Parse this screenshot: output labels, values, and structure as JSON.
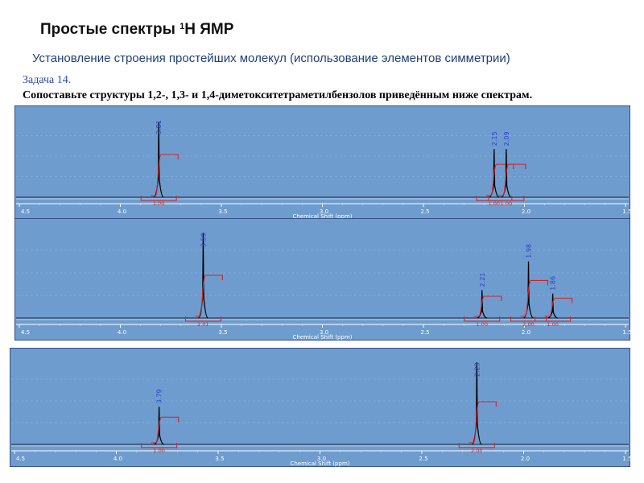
{
  "slide": {
    "title": "Простые спектры ",
    "title_sup": "1",
    "title_tail": "H ЯМР",
    "subtitle": "Установление строения простейших молекул (использование элементов симметрии)",
    "task_number": "Задача 14.",
    "task_text": "Сопоставьте структуры 1,2-, 1,3- и 1,4-диметокситетраметилбензолов приведённым ниже спектрам."
  },
  "colors": {
    "plot_background": "#6f9ccf",
    "plot_border": "#1e3a6e",
    "spectrum_line": "#000000",
    "integral_line": "#d82020",
    "peak_label": "#2d3fc4",
    "axis_text": "#ffffff",
    "grid_line": "#8db3dc"
  },
  "chart_data": [
    {
      "type": "line",
      "name": "spectrum-1",
      "xlabel": "Chemical Shift (ppm)",
      "x_reversed": true,
      "xlim": [
        1.5,
        4.5
      ],
      "x_ticks": [
        4.5,
        4.0,
        3.5,
        3.0,
        2.5,
        2.0,
        1.5
      ],
      "x_tick_labels": [
        "4.5",
        "4.0",
        "3.5",
        "3.0",
        "2.5",
        "2.0",
        "1.5"
      ],
      "peaks": [
        {
          "shift": 3.81,
          "height": 0.95,
          "label": "3.81",
          "integral": "1.00"
        },
        {
          "shift": 2.15,
          "height": 0.61,
          "label": "2.15",
          "integral": "1.00"
        },
        {
          "shift": 2.09,
          "height": 0.61,
          "label": "2.09",
          "integral": "1.00"
        }
      ]
    },
    {
      "type": "line",
      "name": "spectrum-2",
      "xlabel": "Chemical Shift (ppm)",
      "x_reversed": true,
      "xlim": [
        1.5,
        4.5
      ],
      "x_ticks": [
        4.5,
        4.0,
        3.5,
        3.0,
        2.5,
        2.0,
        1.5
      ],
      "x_tick_labels": [
        "4.5",
        "4.0",
        "3.5",
        "3.0",
        "2.5",
        "2.0",
        "1.5"
      ],
      "peaks": [
        {
          "shift": 3.59,
          "height": 0.98,
          "label": "3.59",
          "integral": "2.01"
        },
        {
          "shift": 2.21,
          "height": 0.32,
          "label": "2.21",
          "integral": "1.00"
        },
        {
          "shift": 1.98,
          "height": 0.65,
          "label": "1.98",
          "integral": "2.00"
        },
        {
          "shift": 1.86,
          "height": 0.28,
          "label": "1.86",
          "integral": "1.00"
        }
      ]
    },
    {
      "type": "line",
      "name": "spectrum-3",
      "xlabel": "Chemical Shift (ppm)",
      "x_reversed": true,
      "xlim": [
        1.5,
        4.5
      ],
      "x_ticks": [
        4.5,
        4.0,
        3.5,
        3.0,
        2.5,
        2.0,
        1.5
      ],
      "x_tick_labels": [
        "4.5",
        "4.0",
        "3.5",
        "3.0",
        "2.5",
        "2.0",
        "1.5"
      ],
      "peaks": [
        {
          "shift": 3.79,
          "height": 0.45,
          "label": "3.79",
          "integral": "1.00"
        },
        {
          "shift": 2.23,
          "height": 0.98,
          "label": "2.23",
          "integral": "2.00"
        }
      ]
    }
  ]
}
